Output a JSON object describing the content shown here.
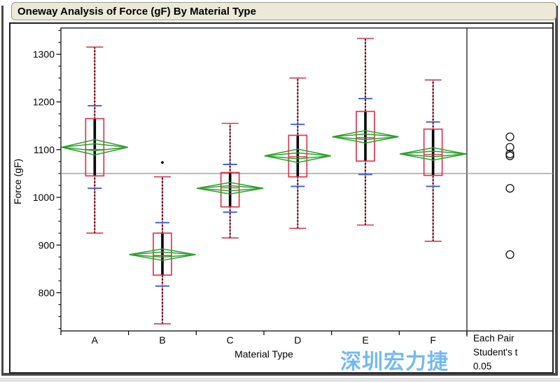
{
  "window": {
    "title": "Oneway Analysis of Force (gF) By Material Type"
  },
  "watermark": {
    "text": "深圳宏力捷",
    "color": "#74b9f6"
  },
  "colors": {
    "titlebar_bg": "#ece9d8",
    "box_red": "#e0364f",
    "whisker_red": "#d63553",
    "needle_dark": "#2b0b0b",
    "diamond_green": "#2da02d",
    "quantile_blue": "#4565d6",
    "grand_mean_gray": "#909090",
    "frame_black": "#1f1f1f"
  },
  "chart_data": {
    "type": "box",
    "title": "Oneway Analysis of Force (gF) By Material Type",
    "xlabel": "Material Type",
    "ylabel": "Force (gF)",
    "ylim": [
      720,
      1355
    ],
    "yticks": [
      800,
      900,
      1000,
      1100,
      1200,
      1300
    ],
    "minor_tick_step": 25,
    "grid": false,
    "grand_mean": 1050,
    "categories": [
      "A",
      "B",
      "C",
      "D",
      "E",
      "F"
    ],
    "groups": [
      {
        "label": "A",
        "mean": 1105,
        "ci": 16,
        "median": 1100,
        "q1": 1045,
        "q3": 1165,
        "whisker_low": 925,
        "whisker_high": 1315,
        "p10": 1019,
        "p90": 1192,
        "outliers": []
      },
      {
        "label": "B",
        "mean": 880,
        "ci": 12,
        "median": 878,
        "q1": 837,
        "q3": 925,
        "whisker_low": 735,
        "whisker_high": 1043,
        "p10": 814,
        "p90": 947,
        "outliers": [
          1073
        ]
      },
      {
        "label": "C",
        "mean": 1019,
        "ci": 12,
        "median": 1020,
        "q1": 980,
        "q3": 1052,
        "whisker_low": 915,
        "whisker_high": 1155,
        "p10": 969,
        "p90": 1069,
        "outliers": []
      },
      {
        "label": "D",
        "mean": 1087,
        "ci": 14,
        "median": 1085,
        "q1": 1043,
        "q3": 1130,
        "whisker_low": 935,
        "whisker_high": 1250,
        "p10": 1023,
        "p90": 1153,
        "outliers": []
      },
      {
        "label": "E",
        "mean": 1127,
        "ci": 13,
        "median": 1125,
        "q1": 1076,
        "q3": 1180,
        "whisker_low": 942,
        "whisker_high": 1333,
        "p10": 1048,
        "p90": 1207,
        "outliers": []
      },
      {
        "label": "F",
        "mean": 1091,
        "ci": 13,
        "median": 1090,
        "q1": 1046,
        "q3": 1143,
        "whisker_low": 908,
        "whisker_high": 1246,
        "p10": 1023,
        "p90": 1158,
        "outliers": []
      }
    ],
    "comparison_circles": {
      "order": [
        "E",
        "A",
        "F",
        "D",
        "C",
        "B"
      ],
      "means": [
        1127,
        1105,
        1091,
        1087,
        1019,
        880
      ]
    },
    "right_panel": {
      "lines": [
        "Each Pair",
        "Student's t",
        "0.05"
      ]
    },
    "legend_position": "right"
  }
}
